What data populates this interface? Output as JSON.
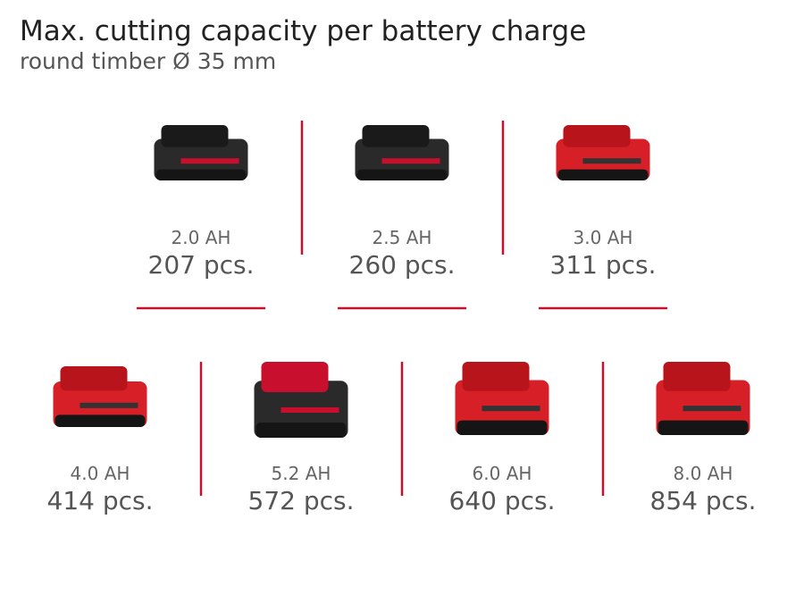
{
  "header": {
    "title": "Max. cutting capacity per battery charge",
    "subtitle": "round timber Ø 35 mm"
  },
  "batteries": [
    {
      "capacity": "2.0 AH",
      "pieces": "207 pcs."
    },
    {
      "capacity": "2.5 AH",
      "pieces": "260 pcs."
    },
    {
      "capacity": "3.0 AH",
      "pieces": "311 pcs."
    },
    {
      "capacity": "4.0 AH",
      "pieces": "414 pcs."
    },
    {
      "capacity": "5.2 AH",
      "pieces": "572 pcs."
    },
    {
      "capacity": "6.0 AH",
      "pieces": "640 pcs."
    },
    {
      "capacity": "8.0 AH",
      "pieces": "854 pcs."
    }
  ]
}
